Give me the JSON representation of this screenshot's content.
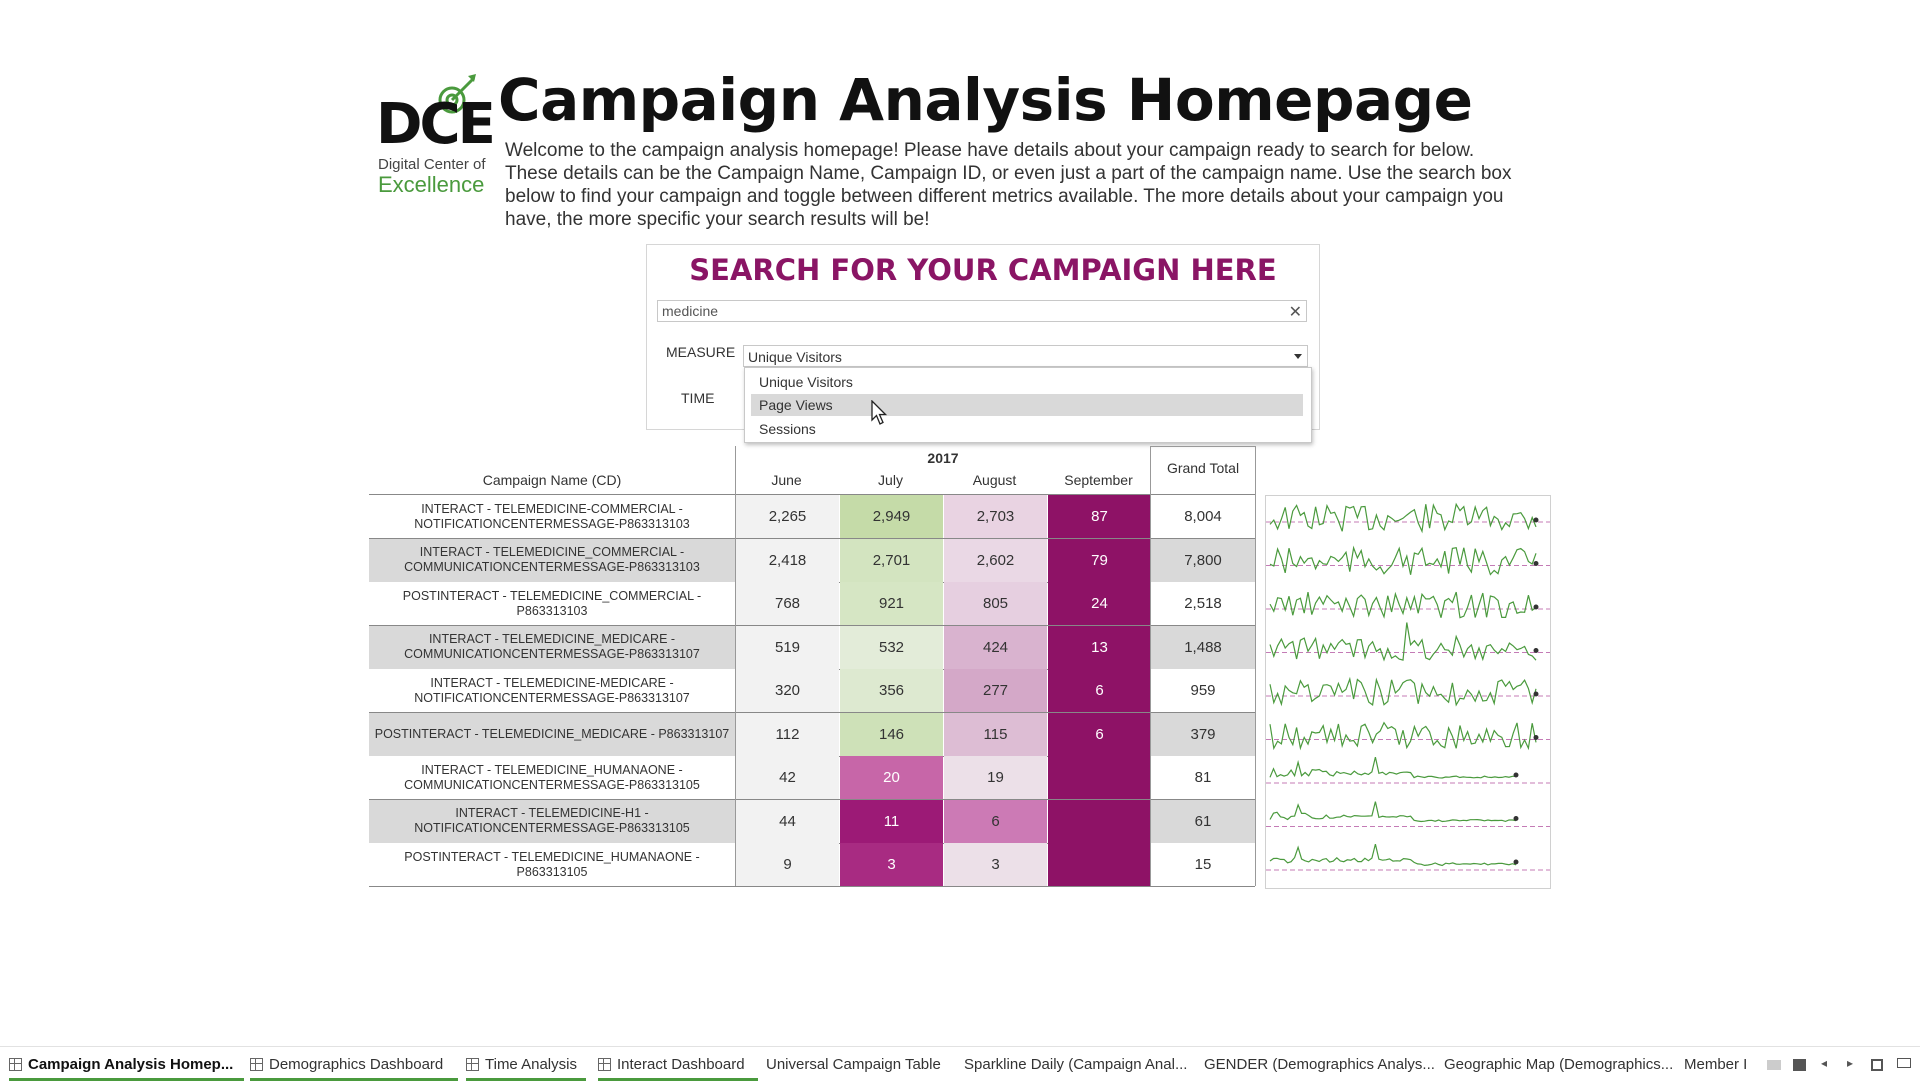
{
  "logo": {
    "letters": "DCE",
    "line1": "Digital Center of",
    "line2": "Excellence"
  },
  "header": {
    "title": "Campaign Analysis Homepage",
    "intro": "Welcome to the campaign analysis homepage!  Please have details about your campaign ready to search for below.  These details can be the Campaign Name, Campaign ID, or even just a part of the campaign name.  Use the search box below to find your campaign and toggle between different metrics available.  The more details about your campaign you have, the more specific your search results will be!"
  },
  "search": {
    "title": "SEARCH FOR YOUR CAMPAIGN HERE",
    "value": "medicine",
    "clear_icon": "close-icon",
    "measure_label": "MEASURE",
    "time_label": "TIME",
    "measure_selected": "Unique Visitors",
    "measure_options": [
      "Unique Visitors",
      "Page Views",
      "Sessions"
    ],
    "highlighted_option": "Page Views"
  },
  "table": {
    "row_header": "Campaign Name (CD)",
    "year": "2017",
    "months": [
      "June",
      "July",
      "August",
      "September"
    ],
    "grand_total_label": "Grand Total",
    "rows": [
      {
        "name": "INTERACT - TELEMEDICINE-COMMERCIAL - NOTIFICATIONCENTERMESSAGE-P863313103",
        "values": [
          "2,265",
          "2,949",
          "2,703",
          "87"
        ],
        "total": "8,004"
      },
      {
        "name": "INTERACT - TELEMEDICINE_COMMERCIAL - COMMUNICATIONCENTERMESSAGE-P863313103",
        "values": [
          "2,418",
          "2,701",
          "2,602",
          "79"
        ],
        "total": "7,800"
      },
      {
        "name": "POSTINTERACT - TELEMEDICINE_COMMERCIAL - P863313103",
        "values": [
          "768",
          "921",
          "805",
          "24"
        ],
        "total": "2,518"
      },
      {
        "name": "INTERACT - TELEMEDICINE_MEDICARE - COMMUNICATIONCENTERMESSAGE-P863313107",
        "values": [
          "519",
          "532",
          "424",
          "13"
        ],
        "total": "1,488"
      },
      {
        "name": "INTERACT - TELEMEDICINE-MEDICARE - NOTIFICATIONCENTERMESSAGE-P863313107",
        "values": [
          "320",
          "356",
          "277",
          "6"
        ],
        "total": "959"
      },
      {
        "name": "POSTINTERACT - TELEMEDICINE_MEDICARE - P863313107",
        "values": [
          "112",
          "146",
          "115",
          "6"
        ],
        "total": "379"
      },
      {
        "name": "INTERACT - TELEMEDICINE_HUMANAONE - COMMUNICATIONCENTERMESSAGE-P863313105",
        "values": [
          "42",
          "20",
          "19",
          ""
        ],
        "total": "81"
      },
      {
        "name": "INTERACT - TELEMEDICINE-H1 - NOTIFICATIONCENTERMESSAGE-P863313105",
        "values": [
          "44",
          "11",
          "6",
          ""
        ],
        "total": "61"
      },
      {
        "name": "POSTINTERACT - TELEMEDICINE_HUMANAONE - P863313105",
        "values": [
          "9",
          "3",
          "3",
          ""
        ],
        "total": "15"
      }
    ],
    "cell_colors": [
      [
        "#f2f2f2",
        "#c5dba8",
        "#e9d3e2",
        "#8e1266"
      ],
      [
        "#f2f2f2",
        "#d3e4c0",
        "#ead8e5",
        "#8e1266"
      ],
      [
        "#f2f2f2",
        "#d6e6c4",
        "#e6cfe0",
        "#8e1266"
      ],
      [
        "#f2f2f2",
        "#e3ecd9",
        "#d9b3cf",
        "#8e1266"
      ],
      [
        "#f2f2f2",
        "#dde9d0",
        "#d4a8c8",
        "#8e1266"
      ],
      [
        "#f2f2f2",
        "#cee1b8",
        "#ddbdd4",
        "#8e1266"
      ],
      [
        "#f2f2f2",
        "#c766a8",
        "#ece0e8",
        "#8e1266"
      ],
      [
        "#f2f2f2",
        "#9c1a76",
        "#cc7ab5",
        "#8e1266"
      ],
      [
        "#f2f2f2",
        "#a82b82",
        "#ece0e8",
        "#8e1266"
      ]
    ],
    "row_bg": [
      "#ffffff",
      "#d9d9d9",
      "#ffffff",
      "#d9d9d9",
      "#ffffff",
      "#d9d9d9",
      "#ffffff",
      "#d9d9d9",
      "#ffffff"
    ],
    "sparkline_color": "#4a9a3d",
    "trend_color": "#c47bb6"
  },
  "tabs": [
    {
      "label": "Campaign Analysis Homep...",
      "icon": "dashboard-icon",
      "active": true
    },
    {
      "label": "Demographics Dashboard",
      "icon": "dashboard-icon"
    },
    {
      "label": "Time Analysis",
      "icon": "dashboard-icon"
    },
    {
      "label": "Interact Dashboard",
      "icon": "dashboard-icon"
    },
    {
      "label": "Universal Campaign  Table",
      "icon": ""
    },
    {
      "label": "Sparkline Daily (Campaign Anal...",
      "icon": ""
    },
    {
      "label": "GENDER (Demographics Analys...",
      "icon": ""
    },
    {
      "label": "Geographic Map (Demographics...",
      "icon": ""
    },
    {
      "label": "Member I",
      "icon": ""
    }
  ],
  "controls": [
    "grid-view-icon",
    "filmstrip-icon",
    "prev-tab-icon",
    "next-tab-icon",
    "fullscreen-icon",
    "presentation-icon"
  ]
}
